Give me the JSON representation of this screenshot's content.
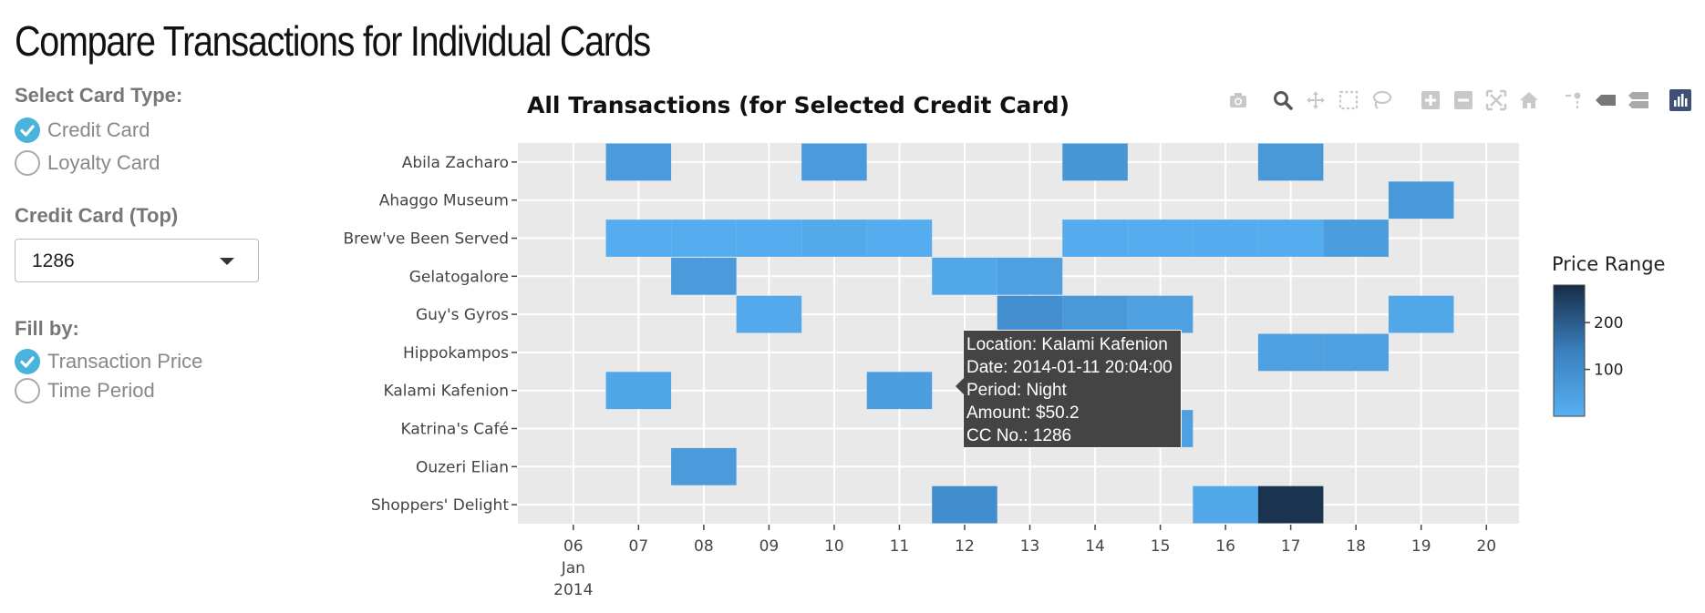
{
  "page_title": "Compare Transactions for Individual Cards",
  "sidebar": {
    "card_type_label": "Select Card Type:",
    "card_types": [
      {
        "label": "Credit Card",
        "checked": true
      },
      {
        "label": "Loyalty Card",
        "checked": false
      }
    ],
    "credit_card_label": "Credit Card (Top)",
    "credit_card_value": "1286",
    "fill_by_label": "Fill by:",
    "fill_options": [
      {
        "label": "Transaction Price",
        "checked": true
      },
      {
        "label": "Time Period",
        "checked": false
      }
    ]
  },
  "colors": {
    "accent": "#4ab3dc",
    "plot_bg": "#e9e9e9",
    "scale_low": "#57b0f2",
    "scale_high": "#172d46"
  },
  "modebar_icons": [
    "camera-icon",
    "zoom-icon",
    "pan-icon",
    "box-select-icon",
    "lasso-icon",
    "zoom-in-icon",
    "zoom-out-icon",
    "autoscale-icon",
    "reset-axes-icon",
    "spike-lines-icon",
    "hover-closest-icon",
    "hover-compare-icon",
    "plotly-logo-icon"
  ],
  "chart_data": {
    "type": "heatmap",
    "title": "All Transactions (for Selected Credit Card)",
    "x_ticks": [
      "06",
      "07",
      "08",
      "09",
      "10",
      "11",
      "12",
      "13",
      "14",
      "15",
      "16",
      "17",
      "18",
      "19",
      "20"
    ],
    "x_sublabel": [
      "Jan",
      "2014"
    ],
    "xlim": [
      5.15,
      20.5
    ],
    "y_categories": [
      "Abila Zacharo",
      "Ahaggo Museum",
      "Brew've Been Served",
      "Gelatogalore",
      "Guy's Gyros",
      "Hippokampos",
      "Kalami Kafenion",
      "Katrina's Café",
      "Ouzeri Elian",
      "Shoppers' Delight"
    ],
    "colorbar": {
      "title": "Price Range",
      "ticks": [
        100,
        200
      ],
      "range": [
        0,
        280
      ]
    },
    "cells": [
      {
        "y": "Abila Zacharo",
        "x": 7,
        "value": 60
      },
      {
        "y": "Abila Zacharo",
        "x": 10,
        "value": 60
      },
      {
        "y": "Abila Zacharo",
        "x": 14,
        "value": 75
      },
      {
        "y": "Abila Zacharo",
        "x": 17,
        "value": 70
      },
      {
        "y": "Ahaggo Museum",
        "x": 19,
        "value": 65
      },
      {
        "y": "Brew've Been Served",
        "x": 7,
        "value": 12
      },
      {
        "y": "Brew've Been Served",
        "x": 8,
        "value": 12
      },
      {
        "y": "Brew've Been Served",
        "x": 9,
        "value": 12
      },
      {
        "y": "Brew've Been Served",
        "x": 10,
        "value": 18
      },
      {
        "y": "Brew've Been Served",
        "x": 11,
        "value": 12
      },
      {
        "y": "Brew've Been Served",
        "x": 14,
        "value": 14
      },
      {
        "y": "Brew've Been Served",
        "x": 15,
        "value": 12
      },
      {
        "y": "Brew've Been Served",
        "x": 16,
        "value": 14
      },
      {
        "y": "Brew've Been Served",
        "x": 17,
        "value": 12
      },
      {
        "y": "Brew've Been Served",
        "x": 18,
        "value": 55
      },
      {
        "y": "Gelatogalore",
        "x": 8,
        "value": 60
      },
      {
        "y": "Gelatogalore",
        "x": 12,
        "value": 25
      },
      {
        "y": "Gelatogalore",
        "x": 13,
        "value": 45
      },
      {
        "y": "Guy's Gyros",
        "x": 9,
        "value": 20
      },
      {
        "y": "Guy's Gyros",
        "x": 13,
        "value": 95
      },
      {
        "y": "Guy's Gyros",
        "x": 14,
        "value": 70
      },
      {
        "y": "Guy's Gyros",
        "x": 15,
        "value": 45
      },
      {
        "y": "Guy's Gyros",
        "x": 19,
        "value": 25
      },
      {
        "y": "Hippokampos",
        "x": 17,
        "value": 45
      },
      {
        "y": "Hippokampos",
        "x": 18,
        "value": 45
      },
      {
        "y": "Kalami Kafenion",
        "x": 7,
        "value": 30
      },
      {
        "y": "Kalami Kafenion",
        "x": 11,
        "value": 50.2
      },
      {
        "y": "Katrina's Café",
        "x": 15,
        "value": 45
      },
      {
        "y": "Ouzeri Elian",
        "x": 8,
        "value": 60
      },
      {
        "y": "Shoppers' Delight",
        "x": 12,
        "value": 100
      },
      {
        "y": "Shoppers' Delight",
        "x": 16,
        "value": 25
      },
      {
        "y": "Shoppers' Delight",
        "x": 17,
        "value": 270
      }
    ]
  },
  "tooltip": {
    "lines": [
      "Location: Kalami Kafenion",
      "Date: 2014-01-11 20:04:00",
      "Period: Night",
      "Amount: $50.2",
      "CC No.: 1286"
    ]
  }
}
